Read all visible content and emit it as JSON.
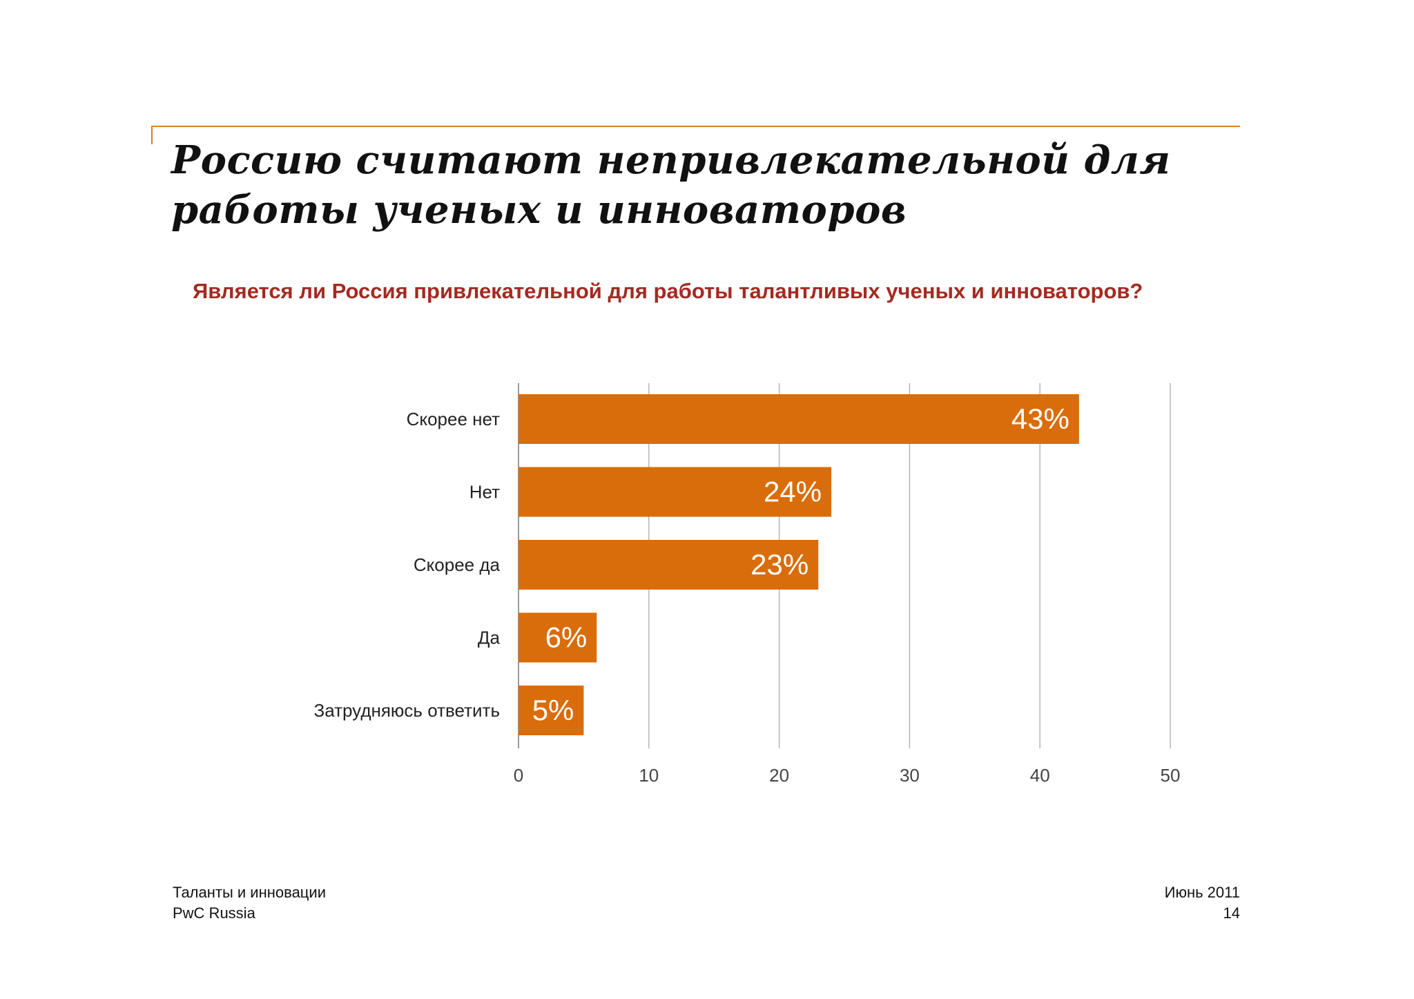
{
  "slide": {
    "title": "Россию считают непривлекательной для работы ученых и инноваторов",
    "question": "Является ли Россия привлекательной для работы талантливых ученых и инноваторов?"
  },
  "chart_data": {
    "type": "bar",
    "orientation": "horizontal",
    "categories": [
      "Скорее нет",
      "Нет",
      "Скорее да",
      "Да",
      "Затрудняюсь ответить"
    ],
    "values": [
      43,
      24,
      23,
      6,
      5
    ],
    "value_labels": [
      "43%",
      "24%",
      "23%",
      "6%",
      "5%"
    ],
    "xlim": [
      0,
      50
    ],
    "x_ticks": [
      0,
      10,
      20,
      30,
      40,
      50
    ],
    "x_tick_labels": [
      "0",
      "10",
      "20",
      "30",
      "40",
      "50"
    ],
    "grid": true,
    "bar_color": "#d96d0a",
    "label_color": "#ffffff",
    "gridline_color": "#b5b5b5"
  },
  "footer": {
    "left_line1": "Таланты и инновации",
    "left_line2": "PwC Russia",
    "right_line1": "Июнь 2011",
    "right_line2": "14"
  },
  "colors": {
    "accent_rule": "#e0801f",
    "question_text": "#a32a22"
  }
}
